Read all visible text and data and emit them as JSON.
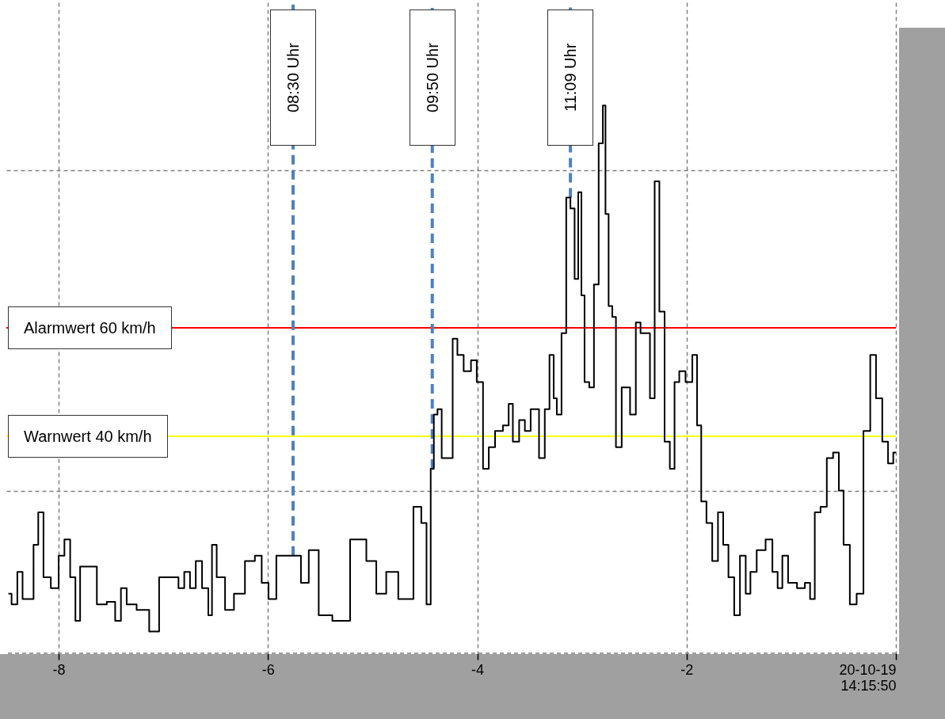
{
  "chart_data": {
    "type": "step",
    "x": [
      -8.48,
      -8.42,
      -8.37,
      -8.32,
      -8.26,
      -8.22,
      -8.17,
      -8.12,
      -8.03,
      -7.97,
      -7.92,
      -7.86,
      -7.82,
      -7.77,
      -7.69,
      -7.58,
      -7.5,
      -7.42,
      -7.39,
      -7.31,
      -7.2,
      -7.07,
      -7.01,
      -6.89,
      -6.82,
      -6.78,
      -6.71,
      -6.67,
      -6.59,
      -6.55,
      -6.52,
      -6.46,
      -6.36,
      -6.29,
      -6.15,
      -6.1,
      -6.02,
      -5.97,
      -5.87,
      -5.72,
      -5.65,
      -5.57,
      -5.46,
      -5.31,
      -5.12,
      -5.0,
      -4.93,
      -4.81,
      -4.7,
      -4.66,
      -4.56,
      -4.51,
      -4.46,
      -4.43,
      -4.4,
      -4.36,
      -4.32,
      -4.26,
      -4.21,
      -4.17,
      -4.09,
      -4.03,
      -3.98,
      -3.91,
      -3.87,
      -3.79,
      -3.72,
      -3.68,
      -3.64,
      -3.56,
      -3.53,
      -3.45,
      -3.37,
      -3.34,
      -3.28,
      -3.26,
      -3.22,
      -3.17,
      -3.13,
      -3.09,
      -3.05,
      -3.02,
      -2.99,
      -2.96,
      -2.9,
      -2.87,
      -2.81,
      -2.79,
      -2.76,
      -2.73,
      -2.69,
      -2.66,
      -2.58,
      -2.5,
      -2.47,
      -2.41,
      -2.37,
      -2.33,
      -2.28,
      -2.24,
      -2.18,
      -2.14,
      -2.09,
      -2.05,
      -1.97,
      -1.92,
      -1.88,
      -1.84,
      -1.78,
      -1.73,
      -1.67,
      -1.63,
      -1.57,
      -1.52,
      -1.46,
      -1.41,
      -1.37,
      -1.29,
      -1.2,
      -1.16,
      -1.1,
      -1.07,
      -0.99,
      -0.9,
      -0.84,
      -0.8,
      -0.75,
      -0.69,
      -0.63,
      -0.57,
      -0.52,
      -0.48,
      -0.4,
      -0.35,
      -0.27,
      -0.22,
      -0.16,
      -0.1,
      -0.05,
      0
    ],
    "series": [
      {
        "color": "#000000",
        "values": [
          11,
          9,
          15,
          10,
          10,
          20,
          26,
          14,
          12,
          18,
          21,
          14,
          6,
          16,
          16,
          9,
          9.5,
          6,
          12,
          9,
          8,
          4,
          14,
          14,
          12,
          15,
          12,
          17,
          12,
          7,
          20,
          14,
          8,
          11,
          17,
          18,
          13,
          10,
          18,
          18,
          13,
          19,
          7,
          6,
          21,
          17,
          11,
          15,
          10,
          10,
          27,
          24,
          9,
          34,
          44,
          45,
          36,
          36,
          58,
          55,
          52,
          54,
          50,
          34,
          38,
          41,
          42,
          46,
          39,
          43,
          41,
          45,
          36,
          45,
          55,
          47,
          44,
          59,
          84,
          82,
          69,
          85,
          66,
          50,
          49,
          68,
          94,
          101,
          81,
          64,
          62,
          38,
          49,
          44,
          61,
          59,
          59,
          47,
          87,
          63,
          39,
          34,
          50,
          52,
          50,
          55,
          42,
          28,
          24,
          17,
          26,
          20,
          14,
          7,
          18,
          11,
          15,
          19,
          21,
          15,
          12,
          18,
          13,
          12,
          13,
          10,
          26,
          27,
          36,
          37,
          30,
          20,
          9,
          11,
          41,
          55,
          47,
          39,
          35,
          37
        ]
      }
    ],
    "xlim": [
      -8.5,
      0
    ],
    "xticks": [
      -8,
      -6,
      -4,
      -2,
      {
        "value": 0,
        "label": "20-10-19\n14:15:50"
      }
    ],
    "ylim": [
      0,
      120
    ],
    "yticks": [
      {
        "value": 30,
        "label": null
      },
      {
        "value": 89,
        "label": null
      }
    ],
    "tick_labels": "x",
    "grid": true,
    "ref_lines": [
      {
        "axis": "y",
        "value": 60,
        "label": "Alarmwert 60 km/h",
        "color": "#ff0000"
      },
      {
        "axis": "y",
        "value": 40,
        "label": "Warnwert 40 km/h",
        "color": "#ffff00"
      },
      {
        "axis": "x",
        "value": -5.76,
        "color": "#4f81bd",
        "line_style": "dashed"
      },
      {
        "axis": "x",
        "value": -4.43,
        "color": "#4f81bd",
        "line_style": "dashed"
      },
      {
        "axis": "x",
        "value": -3.11,
        "color": "#4f81bd",
        "line_style": "dashed"
      }
    ],
    "annotations": [
      {
        "text": "08:30 Uhr",
        "x": -5.76
      },
      {
        "text": "09:50 Uhr",
        "x": -4.43
      },
      {
        "text": "11:09 Uhr",
        "x": -3.11
      }
    ]
  }
}
